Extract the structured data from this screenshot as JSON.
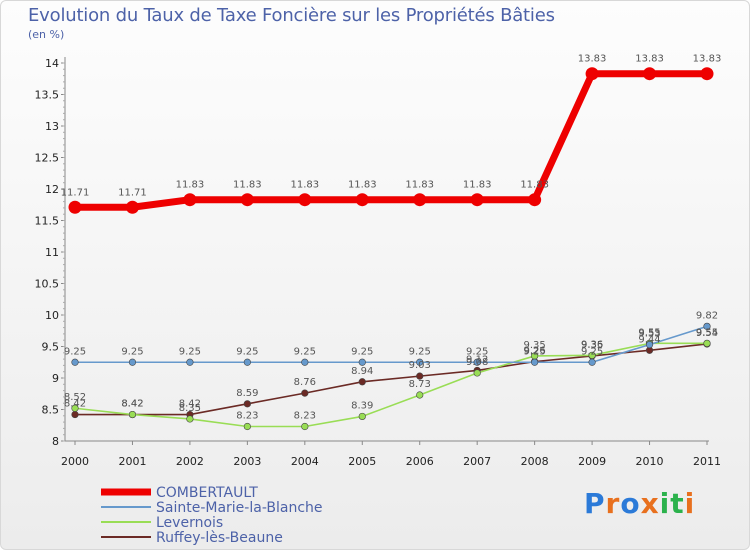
{
  "header": {
    "title": "Evolution du Taux de Taxe Foncière sur les Propriétés Bâties",
    "unit": "(en %)"
  },
  "chart_data": {
    "type": "line",
    "title": "Evolution du Taux de Taxe Foncière sur les Propriétés Bâties",
    "ylabel": "(en %)",
    "xlabel": "",
    "x": [
      "2000",
      "2001",
      "2002",
      "2003",
      "2004",
      "2005",
      "2006",
      "2007",
      "2008",
      "2009",
      "2010",
      "2011"
    ],
    "ylim": [
      8,
      14
    ],
    "yticks": [
      "8",
      "8.5",
      "9",
      "9.5",
      "10",
      "10.5",
      "11",
      "11.5",
      "12",
      "12.5",
      "13",
      "13.5",
      "14"
    ],
    "grid": false,
    "legend_position": "bottom-left",
    "series": [
      {
        "name": "COMBERTAULT",
        "color": "#ee0000",
        "values": [
          11.71,
          11.71,
          11.83,
          11.83,
          11.83,
          11.83,
          11.83,
          11.83,
          11.83,
          13.83,
          13.83,
          13.83
        ],
        "labels": [
          "11.71",
          "11.71",
          "11.83",
          "11.83",
          "11.83",
          "11.83",
          "11.83",
          "11.83",
          "11.83",
          "13.83",
          "13.83",
          "13.83"
        ]
      },
      {
        "name": "Sainte-Marie-la-Blanche",
        "color": "#6699cc",
        "values": [
          9.25,
          9.25,
          9.25,
          9.25,
          9.25,
          9.25,
          9.25,
          9.25,
          9.25,
          9.25,
          9.53,
          9.82
        ],
        "labels": [
          "9.25",
          "9.25",
          "9.25",
          "9.25",
          "9.25",
          "9.25",
          "9.25",
          "9.25",
          "9.25",
          "9.25",
          "9.53",
          "9.82"
        ]
      },
      {
        "name": "Levernois",
        "color": "#99dd55",
        "values": [
          8.52,
          8.42,
          8.35,
          8.23,
          8.23,
          8.39,
          8.73,
          9.08,
          9.35,
          9.36,
          9.55,
          9.55
        ],
        "labels": [
          "8.52",
          "8.42",
          "8.35",
          "8.23",
          "8.23",
          "8.39",
          "8.73",
          "9.08",
          "9.35",
          "9.36",
          "9.55",
          "9.55"
        ]
      },
      {
        "name": "Ruffey-lès-Beaune",
        "color": "#6b2a25",
        "values": [
          8.42,
          8.42,
          8.42,
          8.59,
          8.76,
          8.94,
          9.03,
          9.12,
          9.26,
          9.35,
          9.44,
          9.54
        ],
        "labels": [
          "8.42",
          "8.42",
          "8.42",
          "8.59",
          "8.76",
          "8.94",
          "9.03",
          "9.12",
          "9.26",
          "9.35",
          "9.44",
          "9.54"
        ]
      }
    ]
  },
  "logo": {
    "text": "Proxiti",
    "letters": [
      "P",
      "r",
      "o",
      "x",
      "i",
      "t",
      "i"
    ],
    "colors": [
      "#2b7ad8",
      "#e8701e",
      "#2b7ad8",
      "#e8701e",
      "#2bb24c",
      "#2bb24c",
      "#e8701e"
    ]
  }
}
